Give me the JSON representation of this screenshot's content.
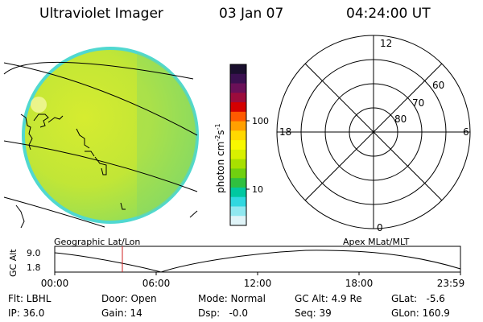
{
  "header": {
    "instrument": "Ultraviolet Imager",
    "date": "03 Jan 07",
    "time": "04:24:00 UT"
  },
  "colorbar": {
    "unit": "photon cm",
    "unit_exp1": "-2",
    "unit_mid": "s",
    "unit_exp2": "-1",
    "ticks": [
      "100",
      "10"
    ],
    "colors": [
      "#1a0f2e",
      "#3a1050",
      "#6a1058",
      "#9c0c3c",
      "#d40000",
      "#ff5a00",
      "#ffa000",
      "#ffd800",
      "#f8f800",
      "#d8f000",
      "#a8e000",
      "#70d010",
      "#30c040",
      "#00c8a0",
      "#30d8e0",
      "#90e8f0",
      "#e0f4f8"
    ]
  },
  "earth": {
    "fill": "#c8e830",
    "fill_alt": "#b8e040",
    "edge": "#50d8d0",
    "label": "Geographic Lat/Lon"
  },
  "polar": {
    "label": "Apex MLat/MLT",
    "mlt_labels": [
      "12",
      "18",
      "6",
      "0"
    ],
    "lat_labels": [
      "60",
      "70",
      "80"
    ]
  },
  "altitude_plot": {
    "ylabel": "GC Alt",
    "ymax_label": "9.0",
    "ymin_label": "1.8",
    "xticks": [
      "00:00",
      "06:00",
      "12:00",
      "18:00",
      "23:59"
    ],
    "marker_color": "#d02020"
  },
  "footer": {
    "flt": "Flt: LBHL",
    "ip": "IP: 36.0",
    "door": "Door: Open",
    "gain": "Gain: 14",
    "mode": "Mode: Normal",
    "dsp": "Dsp:   -0.0",
    "gcalt": "GC Alt: 4.9 Re",
    "seq": "Seq: 39",
    "glat": "GLat:   -5.6",
    "glon": "GLon: 160.9"
  }
}
